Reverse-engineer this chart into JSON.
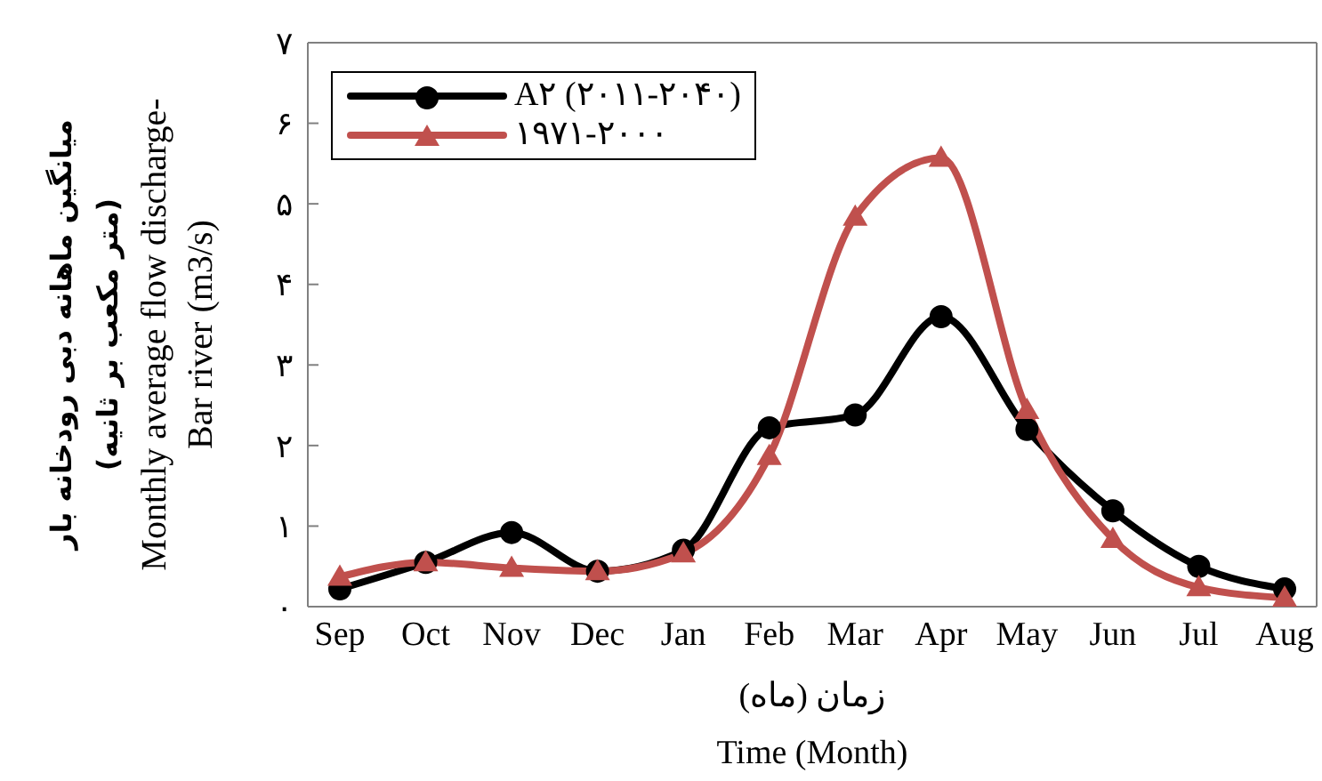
{
  "chart_data": {
    "type": "line",
    "xlabel": "زمان (ماه)\nTime (Month)",
    "ylabel": "میانگین ماهانه دبی رودخانه بار\n(متر مکعب بر ثانیه)\nMonthly average flow discharge-\nBar river (m3/s)",
    "categories": [
      "Sep",
      "Oct",
      "Nov",
      "Dec",
      "Jan",
      "Feb",
      "Mar",
      "Apr",
      "May",
      "Jun",
      "Jul",
      "Aug"
    ],
    "series": [
      {
        "name": "A۲ (۲۰۱۱-۲۰۴۰)",
        "color": "#000000",
        "marker": "circle",
        "values": [
          0.22,
          0.55,
          0.92,
          0.44,
          0.7,
          2.22,
          2.38,
          3.6,
          2.2,
          1.19,
          0.5,
          0.22
        ]
      },
      {
        "name": "۱۹۷۱-۲۰۰۰",
        "color": "#c0504d",
        "marker": "triangle",
        "values": [
          0.37,
          0.55,
          0.48,
          0.44,
          0.66,
          1.87,
          4.84,
          5.57,
          2.44,
          0.84,
          0.24,
          0.11
        ]
      }
    ],
    "ylim": [
      0,
      7
    ],
    "yticks": [
      {
        "value": 0,
        "label": "۰"
      },
      {
        "value": 1,
        "label": "۱"
      },
      {
        "value": 2,
        "label": "۲"
      },
      {
        "value": 3,
        "label": "۳"
      },
      {
        "value": 4,
        "label": "۴"
      },
      {
        "value": 5,
        "label": "۵"
      },
      {
        "value": 6,
        "label": "۶"
      },
      {
        "value": 7,
        "label": "۷"
      }
    ],
    "grid": false,
    "legend": "top left"
  }
}
